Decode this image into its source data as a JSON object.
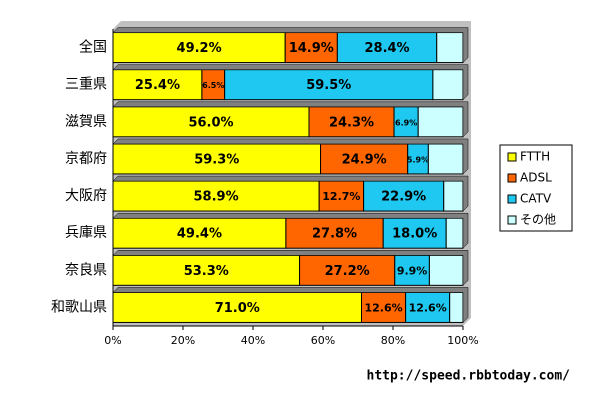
{
  "chart_data": {
    "type": "stacked-bar-horizontal",
    "source": "http://speed.rbbtoday.com/",
    "categories": [
      "全国",
      "三重県",
      "滋賀県",
      "京都府",
      "大阪府",
      "兵庫県",
      "奈良県",
      "和歌山県"
    ],
    "series": [
      {
        "name": "FTTH",
        "color": "#ffff00",
        "values": [
          49.2,
          25.4,
          56.0,
          59.3,
          58.9,
          49.4,
          53.3,
          71.0
        ],
        "value_labels": [
          "49.2%",
          "25.4%",
          "56.0%",
          "59.3%",
          "58.9%",
          "49.4%",
          "53.3%",
          "71.0%"
        ]
      },
      {
        "name": "ADSL",
        "color": "#ff6600",
        "values": [
          14.9,
          6.5,
          24.3,
          24.9,
          12.7,
          27.8,
          27.2,
          12.6
        ],
        "value_labels": [
          "14.9%",
          "6.5%",
          "24.3%",
          "24.9%",
          "12.7%",
          "27.8%",
          "27.2%",
          "12.6%"
        ]
      },
      {
        "name": "CATV",
        "color": "#1ec8f0",
        "values": [
          28.4,
          59.5,
          6.9,
          5.9,
          22.9,
          18.0,
          9.9,
          12.6
        ],
        "value_labels": [
          "28.4%",
          "59.5%",
          "6.9%",
          "5.9%",
          "22.9%",
          "18.0%",
          "9.9%",
          "12.6%"
        ]
      },
      {
        "name": "その他",
        "color": "#ccffff",
        "values": [
          7.5,
          8.6,
          12.8,
          9.9,
          5.5,
          4.8,
          9.6,
          3.8
        ]
      }
    ],
    "xlim": [
      0,
      100
    ],
    "xticks": [
      {
        "value": 0,
        "label": "0%"
      },
      {
        "value": 20,
        "label": "20%"
      },
      {
        "value": 40,
        "label": "40%"
      },
      {
        "value": 60,
        "label": "60%"
      },
      {
        "value": 80,
        "label": "80%"
      },
      {
        "value": 100,
        "label": "100%"
      }
    ]
  }
}
